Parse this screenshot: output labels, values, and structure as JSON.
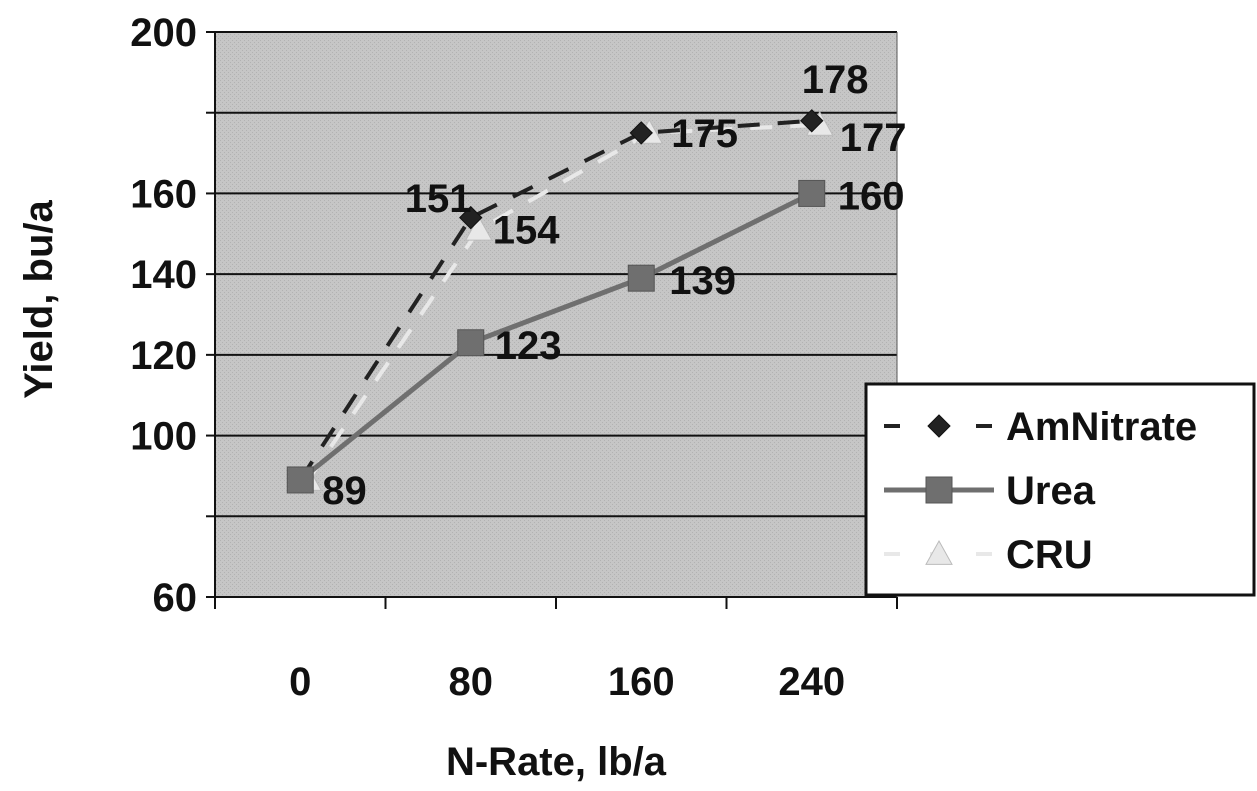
{
  "chart_data": {
    "type": "line",
    "xlabel": "N-Rate, lb/a",
    "ylabel": "Yield, bu/a",
    "categories": [
      "0",
      "80",
      "160",
      "240"
    ],
    "ylim": [
      60,
      200
    ],
    "yticks": [
      "60",
      "",
      "100",
      "120",
      "140",
      "160",
      "",
      "200"
    ],
    "grid": true,
    "legend_position": "right",
    "series": [
      {
        "name": "AmNitrate",
        "marker": "diamond",
        "line": "dashed",
        "color": "#222222",
        "values": [
          89,
          154,
          175,
          178
        ],
        "labels": [
          "",
          "154",
          "175",
          "178"
        ]
      },
      {
        "name": "Urea",
        "marker": "square",
        "line": "solid",
        "color": "#6f6f6f",
        "values": [
          89,
          123,
          139,
          160
        ],
        "labels": [
          "89",
          "123",
          "139",
          "160"
        ]
      },
      {
        "name": "CRU",
        "marker": "triangle",
        "line": "dashed",
        "color": "#e8e8e8",
        "values": [
          89,
          151,
          175,
          177
        ],
        "labels": [
          "",
          "151",
          "",
          "177"
        ]
      }
    ]
  },
  "colors": {
    "plot_background": "#c4c4c4",
    "gridline": "#111111",
    "axis": "#111111"
  }
}
